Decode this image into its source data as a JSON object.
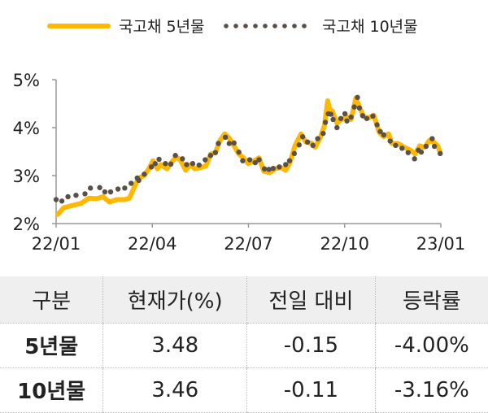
{
  "chart_data": {
    "type": "line",
    "x_unit": "months since 22/01",
    "xlim": [
      0,
      12
    ],
    "ylim": [
      2,
      5
    ],
    "yticks": [
      {
        "v": 2,
        "label": "2%"
      },
      {
        "v": 3,
        "label": "3%"
      },
      {
        "v": 4,
        "label": "4%"
      },
      {
        "v": 5,
        "label": "5%"
      }
    ],
    "xticks": [
      {
        "v": 0,
        "label": "22/01"
      },
      {
        "v": 3,
        "label": "22/04"
      },
      {
        "v": 6,
        "label": "22/07"
      },
      {
        "v": 9,
        "label": "22/10"
      },
      {
        "v": 12,
        "label": "23/01"
      }
    ],
    "grid": false,
    "legend_position": "top",
    "series": [
      {
        "name": "국고채 5년물",
        "color": "#FFB800",
        "style": "line",
        "points": [
          [
            0.05,
            2.19
          ],
          [
            0.24,
            2.33
          ],
          [
            0.58,
            2.39
          ],
          [
            0.78,
            2.42
          ],
          [
            1.02,
            2.53
          ],
          [
            1.27,
            2.52
          ],
          [
            1.46,
            2.56
          ],
          [
            1.66,
            2.45
          ],
          [
            1.9,
            2.5
          ],
          [
            2.14,
            2.5
          ],
          [
            2.29,
            2.53
          ],
          [
            2.43,
            2.75
          ],
          [
            2.58,
            2.95
          ],
          [
            2.75,
            3.0
          ],
          [
            2.92,
            3.17
          ],
          [
            3.02,
            3.31
          ],
          [
            3.16,
            3.14
          ],
          [
            3.26,
            3.23
          ],
          [
            3.46,
            3.14
          ],
          [
            3.6,
            3.28
          ],
          [
            3.75,
            3.39
          ],
          [
            3.89,
            3.31
          ],
          [
            4.04,
            3.11
          ],
          [
            4.19,
            3.23
          ],
          [
            4.33,
            3.14
          ],
          [
            4.53,
            3.17
          ],
          [
            4.67,
            3.2
          ],
          [
            4.82,
            3.45
          ],
          [
            4.97,
            3.48
          ],
          [
            5.11,
            3.73
          ],
          [
            5.26,
            3.87
          ],
          [
            5.4,
            3.78
          ],
          [
            5.55,
            3.62
          ],
          [
            5.7,
            3.45
          ],
          [
            5.84,
            3.37
          ],
          [
            5.99,
            3.25
          ],
          [
            6.18,
            3.31
          ],
          [
            6.33,
            3.37
          ],
          [
            6.48,
            3.09
          ],
          [
            6.67,
            3.06
          ],
          [
            6.82,
            3.14
          ],
          [
            7.01,
            3.17
          ],
          [
            7.16,
            3.11
          ],
          [
            7.3,
            3.28
          ],
          [
            7.45,
            3.62
          ],
          [
            7.64,
            3.87
          ],
          [
            7.79,
            3.7
          ],
          [
            7.98,
            3.67
          ],
          [
            8.08,
            3.59
          ],
          [
            8.23,
            3.78
          ],
          [
            8.37,
            4.04
          ],
          [
            8.47,
            4.56
          ],
          [
            8.52,
            4.4
          ],
          [
            8.62,
            4.34
          ],
          [
            8.76,
            4.09
          ],
          [
            8.91,
            4.17
          ],
          [
            9.06,
            4.23
          ],
          [
            9.2,
            4.17
          ],
          [
            9.35,
            4.62
          ],
          [
            9.45,
            4.45
          ],
          [
            9.59,
            4.23
          ],
          [
            9.74,
            4.2
          ],
          [
            9.91,
            4.26
          ],
          [
            10.08,
            3.9
          ],
          [
            10.22,
            3.81
          ],
          [
            10.37,
            3.87
          ],
          [
            10.47,
            3.67
          ],
          [
            10.66,
            3.67
          ],
          [
            10.86,
            3.59
          ],
          [
            11.05,
            3.53
          ],
          [
            11.2,
            3.45
          ],
          [
            11.34,
            3.62
          ],
          [
            11.49,
            3.59
          ],
          [
            11.64,
            3.73
          ],
          [
            11.78,
            3.7
          ],
          [
            11.9,
            3.62
          ],
          [
            11.98,
            3.48
          ]
        ]
      },
      {
        "name": "국고채 10년물",
        "color": "#5a5048",
        "style": "dots",
        "points": [
          [
            0,
            2.5
          ],
          [
            0.18,
            2.47
          ],
          [
            0.37,
            2.56
          ],
          [
            0.62,
            2.59
          ],
          [
            0.9,
            2.62
          ],
          [
            1.07,
            2.74
          ],
          [
            1.36,
            2.75
          ],
          [
            1.52,
            2.66
          ],
          [
            1.7,
            2.66
          ],
          [
            1.93,
            2.72
          ],
          [
            2.14,
            2.74
          ],
          [
            2.34,
            2.84
          ],
          [
            2.53,
            2.95
          ],
          [
            2.58,
            2.9
          ],
          [
            2.75,
            3.03
          ],
          [
            2.97,
            3.18
          ],
          [
            3.09,
            3.25
          ],
          [
            3.21,
            3.34
          ],
          [
            3.41,
            3.25
          ],
          [
            3.58,
            3.24
          ],
          [
            3.72,
            3.42
          ],
          [
            3.94,
            3.35
          ],
          [
            4.07,
            3.23
          ],
          [
            4.26,
            3.25
          ],
          [
            4.46,
            3.22
          ],
          [
            4.65,
            3.33
          ],
          [
            4.82,
            3.42
          ],
          [
            4.97,
            3.48
          ],
          [
            5.06,
            3.67
          ],
          [
            5.28,
            3.8
          ],
          [
            5.4,
            3.67
          ],
          [
            5.55,
            3.68
          ],
          [
            5.7,
            3.49
          ],
          [
            5.82,
            3.31
          ],
          [
            6.04,
            3.33
          ],
          [
            6.21,
            3.27
          ],
          [
            6.33,
            3.33
          ],
          [
            6.5,
            3.14
          ],
          [
            6.64,
            3.13
          ],
          [
            6.77,
            3.15
          ],
          [
            6.96,
            3.18
          ],
          [
            7.16,
            3.23
          ],
          [
            7.28,
            3.31
          ],
          [
            7.43,
            3.46
          ],
          [
            7.58,
            3.64
          ],
          [
            7.69,
            3.81
          ],
          [
            7.84,
            3.7
          ],
          [
            8.01,
            3.63
          ],
          [
            8.16,
            3.77
          ],
          [
            8.33,
            3.88
          ],
          [
            8.4,
            4.11
          ],
          [
            8.49,
            4.29
          ],
          [
            8.57,
            4.28
          ],
          [
            8.64,
            4.17
          ],
          [
            8.76,
            4.0
          ],
          [
            8.88,
            4.19
          ],
          [
            9.01,
            4.29
          ],
          [
            9.07,
            4.14
          ],
          [
            9.2,
            4.22
          ],
          [
            9.3,
            4.43
          ],
          [
            9.4,
            4.63
          ],
          [
            9.46,
            4.41
          ],
          [
            9.56,
            4.25
          ],
          [
            9.69,
            4.19
          ],
          [
            9.88,
            4.24
          ],
          [
            10.01,
            4.06
          ],
          [
            10.11,
            3.92
          ],
          [
            10.22,
            3.85
          ],
          [
            10.42,
            3.72
          ],
          [
            10.59,
            3.63
          ],
          [
            10.79,
            3.57
          ],
          [
            10.98,
            3.48
          ],
          [
            11.18,
            3.35
          ],
          [
            11.3,
            3.53
          ],
          [
            11.39,
            3.49
          ],
          [
            11.54,
            3.61
          ],
          [
            11.73,
            3.77
          ],
          [
            11.8,
            3.61
          ],
          [
            11.98,
            3.46
          ]
        ]
      }
    ]
  },
  "table": {
    "headers": [
      "구분",
      "현재가(%)",
      "전일 대비",
      "등락률"
    ],
    "rows": [
      [
        "5년물",
        "3.48",
        "-0.15",
        "-4.00%"
      ],
      [
        "10년물",
        "3.46",
        "-0.11",
        "-3.16%"
      ]
    ]
  }
}
